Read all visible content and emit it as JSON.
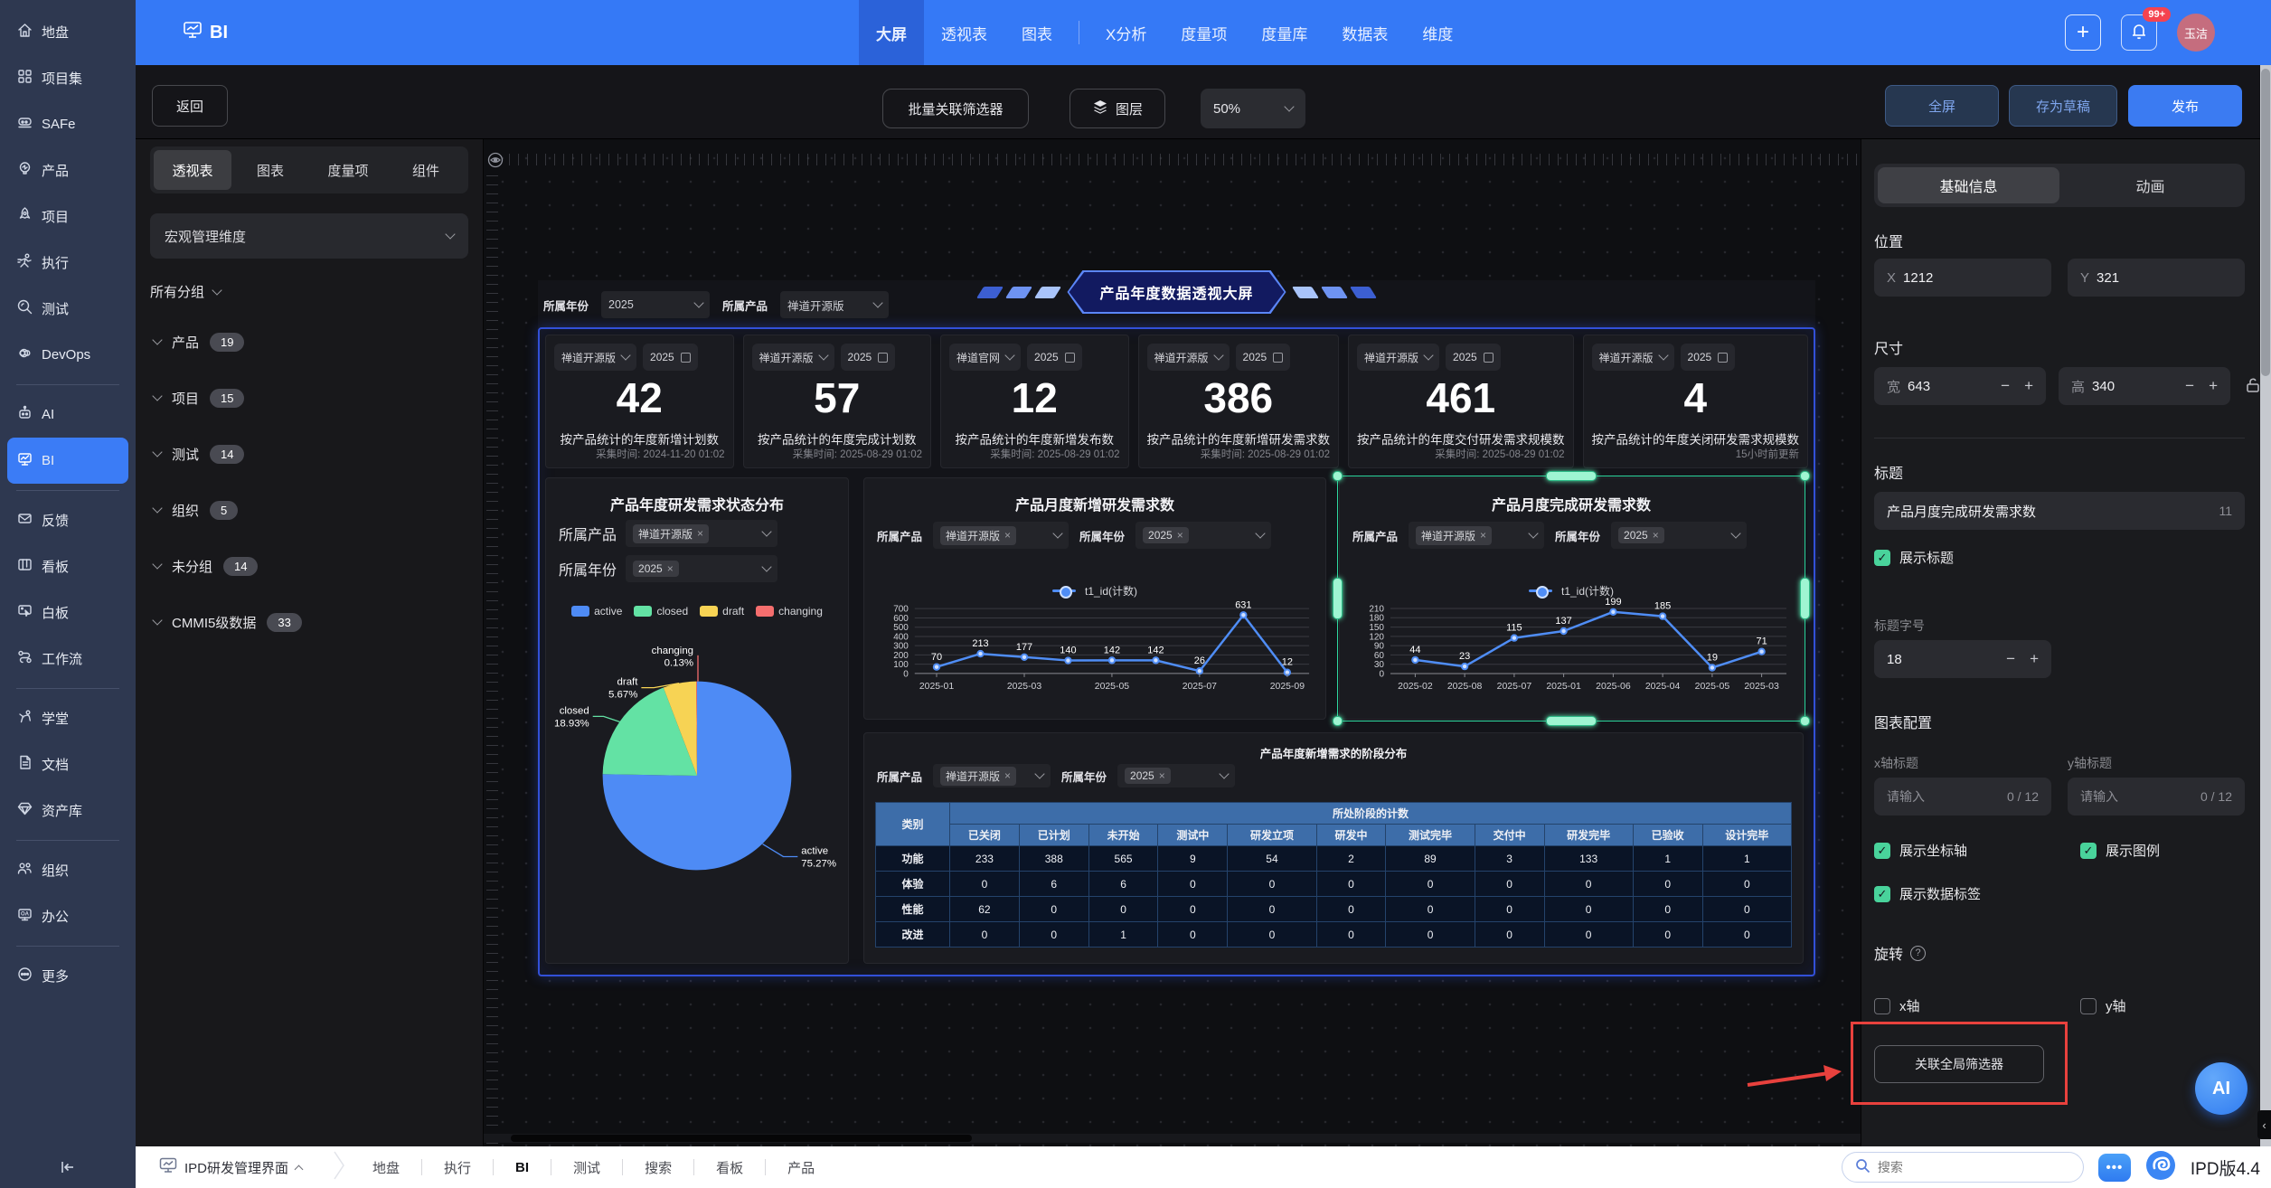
{
  "sidebar": {
    "items": [
      {
        "label": "地盘",
        "icon": "home"
      },
      {
        "label": "项目集",
        "icon": "grid"
      },
      {
        "label": "SAFe",
        "icon": "train"
      },
      {
        "label": "产品",
        "icon": "bulb"
      },
      {
        "label": "项目",
        "icon": "rocket"
      },
      {
        "label": "执行",
        "icon": "run"
      },
      {
        "label": "测试",
        "icon": "search"
      },
      {
        "label": "DevOps",
        "icon": "infinity"
      },
      {
        "divider": true
      },
      {
        "label": "AI",
        "icon": "robot"
      },
      {
        "label": "BI",
        "icon": "board",
        "active": true
      },
      {
        "divider": true
      },
      {
        "label": "反馈",
        "icon": "mail"
      },
      {
        "label": "看板",
        "icon": "kanban"
      },
      {
        "label": "白板",
        "icon": "whiteboard"
      },
      {
        "label": "工作流",
        "icon": "workflow"
      },
      {
        "divider": true
      },
      {
        "label": "学堂",
        "icon": "teach"
      },
      {
        "label": "文档",
        "icon": "doc"
      },
      {
        "label": "资产库",
        "icon": "gem"
      },
      {
        "divider": true
      },
      {
        "label": "组织",
        "icon": "people"
      },
      {
        "label": "办公",
        "icon": "oa"
      },
      {
        "divider": true
      },
      {
        "label": "更多",
        "icon": "more"
      }
    ]
  },
  "topnav": {
    "logo": "BI",
    "tabs": [
      "大屏",
      "透视表",
      "图表",
      "X分析",
      "度量项",
      "度量库",
      "数据表",
      "维度"
    ],
    "active_tab": "大屏",
    "divider_after_index": 2,
    "notification_badge": "99+",
    "avatar": "玉洁"
  },
  "toolbar": {
    "back": "返回",
    "batch_link_filter": "批量关联筛选器",
    "layers": "图层",
    "zoom": "50%",
    "fullscreen": "全屏",
    "save_draft": "存为草稿",
    "publish": "发布"
  },
  "left_panel": {
    "tabs": [
      "透视表",
      "图表",
      "度量项",
      "组件"
    ],
    "active_tab": "透视表",
    "dimension_select": "宏观管理维度",
    "groups_label": "所有分组",
    "groups": [
      {
        "name": "产品",
        "count": "19"
      },
      {
        "name": "项目",
        "count": "15"
      },
      {
        "name": "测试",
        "count": "14"
      },
      {
        "name": "组织",
        "count": "5"
      },
      {
        "name": "未分组",
        "count": "14"
      },
      {
        "name": "CMMI5级数据",
        "count": "33"
      }
    ]
  },
  "canvas": {
    "filters": [
      {
        "label": "所属年份",
        "value": "2025"
      },
      {
        "label": "所属产品",
        "value": "禅道开源版"
      }
    ],
    "banner_title": "产品年度数据透视大屏",
    "stat_cards": [
      {
        "product": "禅道开源版",
        "year": "2025",
        "value": "42",
        "label": "按产品统计的年度新增计划数",
        "time": "采集时间: 2024-11-20 01:02"
      },
      {
        "product": "禅道开源版",
        "year": "2025",
        "value": "57",
        "label": "按产品统计的年度完成计划数",
        "time": "采集时间: 2025-08-29 01:02"
      },
      {
        "product": "禅道官网",
        "year": "2025",
        "value": "12",
        "label": "按产品统计的年度新增发布数",
        "time": "采集时间: 2025-08-29 01:02"
      },
      {
        "product": "禅道开源版",
        "year": "2025",
        "value": "386",
        "label": "按产品统计的年度新增研发需求数",
        "time": "采集时间: 2025-08-29 01:02"
      },
      {
        "product": "禅道开源版",
        "year": "2025",
        "value": "461",
        "label": "按产品统计的年度交付研发需求规模数",
        "time": "采集时间: 2025-08-29 01:02"
      },
      {
        "product": "禅道开源版",
        "year": "2025",
        "value": "4",
        "label": "按产品统计的年度关闭研发需求规模数",
        "time": "15小时前更新"
      }
    ]
  },
  "chart_data": [
    {
      "id": "status_pie",
      "type": "pie",
      "title": "产品年度研发需求状态分布",
      "filters": [
        {
          "label": "所属产品",
          "value": "禅道开源版"
        },
        {
          "label": "所属年份",
          "value": "2025"
        }
      ],
      "labels": [
        "active",
        "closed",
        "draft",
        "changing"
      ],
      "values": [
        75.27,
        18.93,
        5.67,
        0.13
      ],
      "unit": "%",
      "colors": [
        "#4e8bf5",
        "#63e2a4",
        "#f7d354",
        "#f56e6e"
      ],
      "legend_position": "top"
    },
    {
      "id": "monthly_new",
      "type": "line",
      "title": "产品月度新增研发需求数",
      "filters": [
        {
          "label": "所属产品",
          "value": "禅道开源版"
        },
        {
          "label": "所属年份",
          "value": "2025"
        }
      ],
      "categories": [
        "2025-01",
        "2025-02",
        "2025-03",
        "2025-04",
        "2025-05",
        "2025-06",
        "2025-07",
        "2025-08",
        "2025-09"
      ],
      "series": [
        {
          "name": "t1_id(计数)",
          "values": [
            70,
            213,
            177,
            140,
            142,
            142,
            26,
            631,
            12
          ]
        }
      ],
      "ylim": [
        0,
        700
      ],
      "ystep": 100,
      "x_label_every": 2,
      "grid": true,
      "color": "#4f8df5"
    },
    {
      "id": "monthly_done",
      "type": "line",
      "title": "产品月度完成研发需求数",
      "filters": [
        {
          "label": "所属产品",
          "value": "禅道开源版"
        },
        {
          "label": "所属年份",
          "value": "2025"
        }
      ],
      "categories": [
        "2025-02",
        "2025-08",
        "2025-07",
        "2025-01",
        "2025-06",
        "2025-04",
        "2025-05",
        "2025-03"
      ],
      "series": [
        {
          "name": "t1_id(计数)",
          "values": [
            44,
            23,
            115,
            137,
            199,
            185,
            19,
            71
          ]
        }
      ],
      "ylim": [
        0,
        210
      ],
      "ystep": 30,
      "x_label_every": 1,
      "grid": true,
      "color": "#4f8df5"
    },
    {
      "id": "stage_table",
      "type": "table",
      "title": "产品年度新增需求的阶段分布",
      "filters": [
        {
          "label": "所属产品",
          "value": "禅道开源版"
        },
        {
          "label": "所属年份",
          "value": "2025"
        }
      ],
      "row_header": "类别",
      "group_header": "所处阶段的计数",
      "columns": [
        "已关闭",
        "已计划",
        "未开始",
        "测试中",
        "研发立项",
        "研发中",
        "测试完毕",
        "交付中",
        "研发完毕",
        "已验收",
        "设计完毕"
      ],
      "rows": [
        {
          "name": "功能",
          "values": [
            233,
            388,
            565,
            9,
            54,
            2,
            89,
            3,
            133,
            1,
            1
          ]
        },
        {
          "name": "体验",
          "values": [
            0,
            6,
            6,
            0,
            0,
            0,
            0,
            0,
            0,
            0,
            0
          ]
        },
        {
          "name": "性能",
          "values": [
            62,
            0,
            0,
            0,
            0,
            0,
            0,
            0,
            0,
            0,
            0
          ]
        },
        {
          "name": "改进",
          "values": [
            0,
            0,
            1,
            0,
            0,
            0,
            0,
            0,
            0,
            0,
            0
          ]
        }
      ]
    }
  ],
  "right_panel": {
    "tabs": [
      "基础信息",
      "动画"
    ],
    "active_tab": "基础信息",
    "position_label": "位置",
    "x_prefix": "X",
    "x_value": "1212",
    "y_prefix": "Y",
    "y_value": "321",
    "size_label": "尺寸",
    "w_prefix": "宽",
    "w_value": "643",
    "h_prefix": "高",
    "h_value": "340",
    "minus": "−",
    "plus": "+",
    "title_label": "标题",
    "title_value": "产品月度完成研发需求数",
    "title_count": "11",
    "show_title": "展示标题",
    "title_font_label": "标题字号",
    "title_font_size": "18",
    "chart_config_label": "图表配置",
    "x_axis_label": "x轴标题",
    "y_axis_label": "y轴标题",
    "axis_placeholder": "请输入",
    "axis_count": "0 / 12",
    "show_axis": "展示坐标轴",
    "show_legend": "展示图例",
    "show_data_labels": "展示数据标签",
    "rotate_label": "旋转",
    "rotate_x": "x轴",
    "rotate_y": "y轴",
    "link_global_filter": "关联全局筛选器",
    "ai_label": "AI"
  },
  "bottom_bar": {
    "workspace": "IPD研发管理界面",
    "links": [
      "地盘",
      "执行",
      "BI",
      "测试",
      "搜索",
      "看板",
      "产品"
    ],
    "active_link": "BI",
    "search_placeholder": "搜索",
    "version": "IPD版4.4"
  }
}
